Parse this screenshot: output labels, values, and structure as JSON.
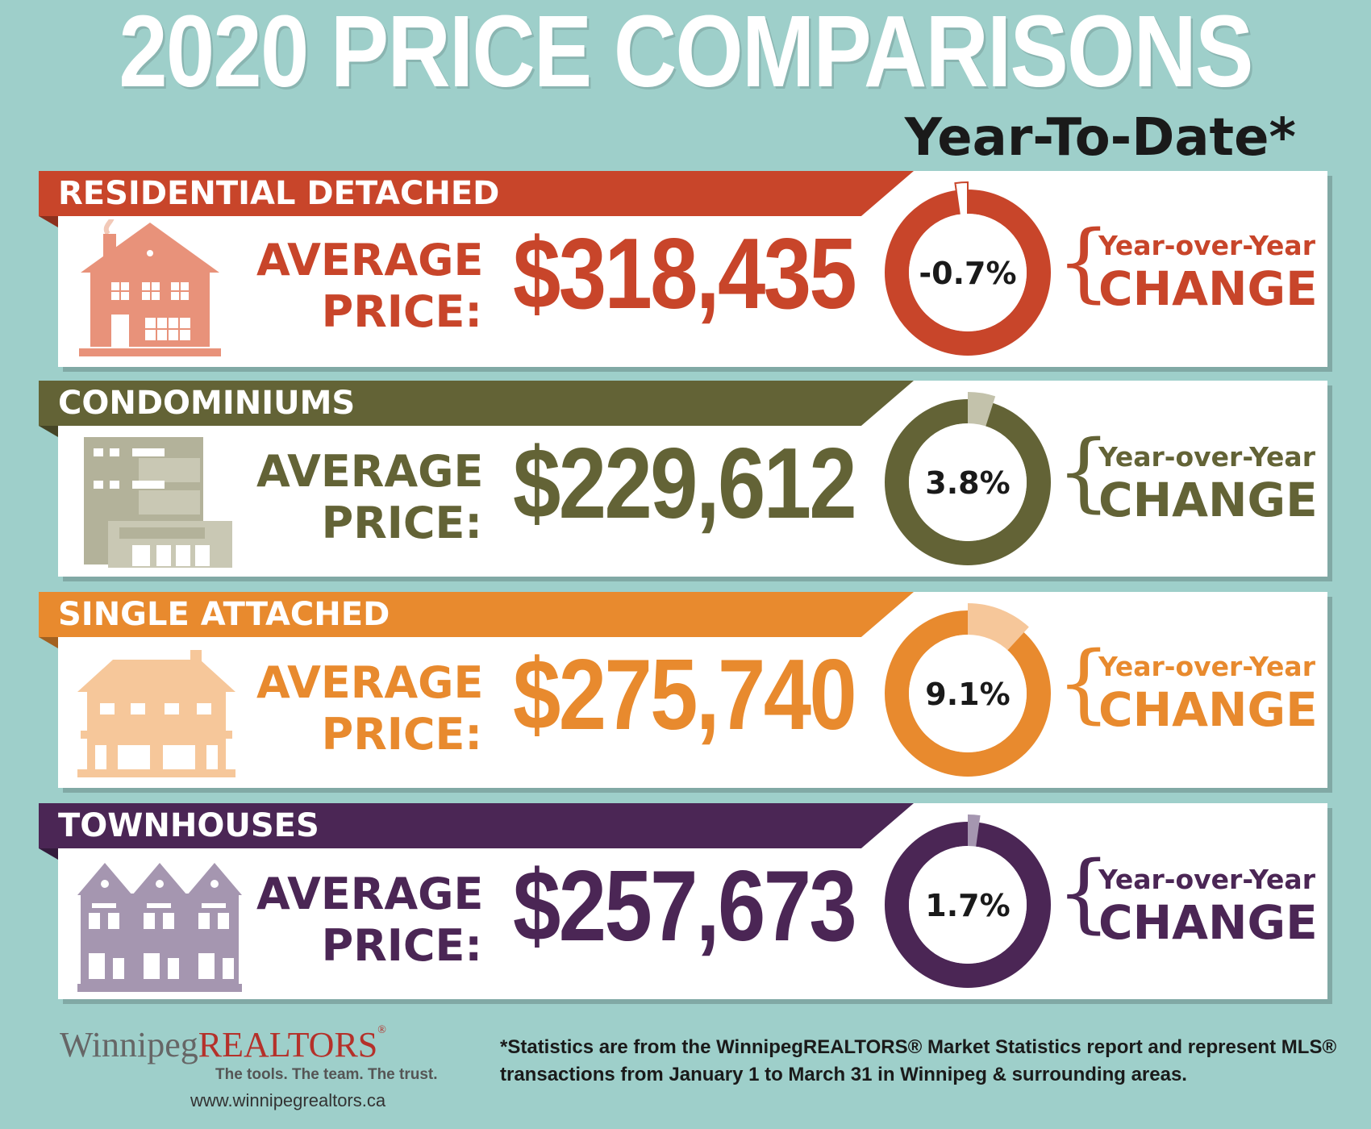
{
  "header": {
    "title": "2020 PRICE COMPARISONS",
    "subtitle": "Year-To-Date*"
  },
  "labels": {
    "average": "AVERAGE",
    "price": "PRICE:",
    "yoy": "Year-over-Year",
    "change": "CHANGE",
    "brace": "{"
  },
  "chart_data": {
    "type": "bar",
    "title": "2020 PRICE COMPARISONS",
    "subtitle": "Year-To-Date*",
    "categories": [
      "RESIDENTIAL DETACHED",
      "CONDOMINIUMS",
      "SINGLE ATTACHED",
      "TOWNHOUSES"
    ],
    "series": [
      {
        "name": "AVERAGE PRICE",
        "values": [
          318435,
          229612,
          275740,
          257673
        ]
      },
      {
        "name": "Year-over-Year CHANGE",
        "values": [
          -0.7,
          3.8,
          9.1,
          1.7
        ]
      }
    ]
  },
  "categories": [
    {
      "name": "RESIDENTIAL DETACHED",
      "price": "$318,435",
      "change": -0.7,
      "change_label": "-0.7%",
      "color": "#c8452a",
      "light": "#e8927a",
      "icon": "house-icon"
    },
    {
      "name": "CONDOMINIUMS",
      "price": "$229,612",
      "change": 3.8,
      "change_label": "3.8%",
      "color": "#636336",
      "light": "#c3c2ab",
      "icon": "condo-building-icon"
    },
    {
      "name": "SINGLE ATTACHED",
      "price": "$275,740",
      "change": 9.1,
      "change_label": "9.1%",
      "color": "#e88a2e",
      "light": "#f6c79a",
      "icon": "duplex-icon"
    },
    {
      "name": "TOWNHOUSES",
      "price": "$257,673",
      "change": 1.7,
      "change_label": "1.7%",
      "color": "#4b2655",
      "light": "#a596b0",
      "icon": "townhouses-icon"
    }
  ],
  "footer": {
    "logo_winnipeg": "Winnipeg",
    "logo_realtors": "REALTORS",
    "logo_mark": "®",
    "tagline": "The tools. The team. The trust.",
    "website": "www.winnipegrealtors.ca",
    "footnote": "*Statistics are from the WinnipegREALTORS® Market Statistics report and represent MLS® transactions from January 1 to March 31 in Winnipeg & surrounding areas."
  }
}
